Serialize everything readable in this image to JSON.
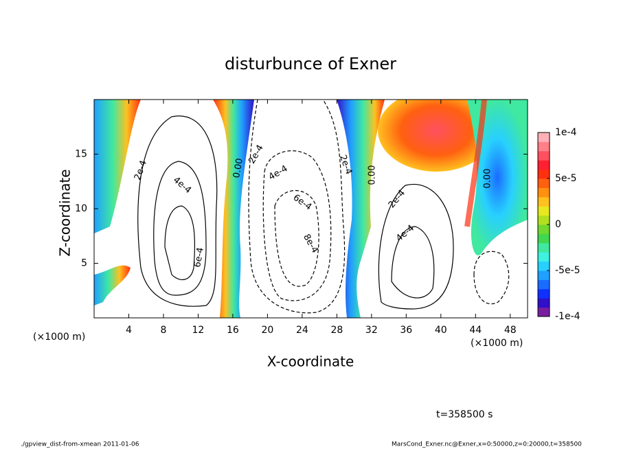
{
  "chart_data": {
    "type": "contour",
    "title": "disturbunce of Exner",
    "xlabel": "X-coordinate",
    "ylabel": "Z-coordinate",
    "x_unit": "(×1000 m)",
    "xlim": [
      0,
      50
    ],
    "xticks": [
      4,
      8,
      12,
      16,
      20,
      24,
      28,
      32,
      36,
      40,
      44,
      48
    ],
    "ylim": [
      0,
      20
    ],
    "yticks": [
      5,
      10,
      15
    ],
    "clim": [
      -0.0001,
      0.0001
    ],
    "cticks": [
      {
        "value": 0.0001,
        "label": "1e-4"
      },
      {
        "value": 5e-05,
        "label": "5e-5"
      },
      0,
      {
        "value": -5e-05,
        "label": "-5e-5"
      },
      {
        "value": -0.0001,
        "label": "-1e-4"
      }
    ],
    "colors": [
      "#7a1ea0",
      "#3010c8",
      "#1030ff",
      "#1a6cff",
      "#20a0ff",
      "#28d0ff",
      "#40f0e0",
      "#40e8a0",
      "#40d850",
      "#70d830",
      "#b0e020",
      "#e8e820",
      "#ffc020",
      "#ff9010",
      "#ff6010",
      "#ff3010",
      "#ff2030",
      "#ff5060",
      "#ff8088",
      "#ffb0b8"
    ],
    "contour_labels": [
      {
        "value": 0.0002,
        "label": "2e-4"
      },
      {
        "value": 0.0004,
        "label": "4e-4"
      },
      {
        "value": 0.0006,
        "label": "6e-4"
      },
      {
        "value": 0,
        "label": "0.00"
      },
      {
        "value": 0.0002,
        "label": "2e-4"
      },
      {
        "value": 0.0004,
        "label": "4e-4"
      },
      {
        "value": 0.0006,
        "label": "6e-4"
      },
      {
        "value": 0.0008,
        "label": "8e-4"
      },
      {
        "value": 0.0002,
        "label": "2e-4"
      },
      {
        "value": 0,
        "label": "0.00"
      },
      {
        "value": 0.0002,
        "label": "2e-4"
      },
      {
        "value": 0.0004,
        "label": "4e-4"
      },
      {
        "value": 0,
        "label": "0.00"
      }
    ],
    "time_label": "t=358500 s",
    "footer_left": "./gpview_dist-from-xmean  2011-01-06",
    "footer_right": "MarsCond_Exner.nc@Exner,x=0:50000,z=0:20000,t=358500"
  }
}
